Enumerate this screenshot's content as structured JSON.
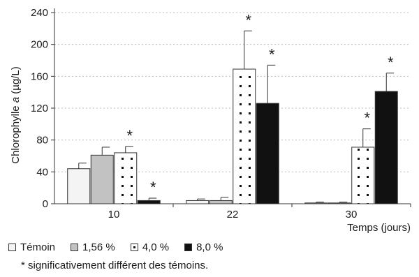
{
  "chart_data": {
    "type": "bar",
    "title": "",
    "ylabel_prefix": "Chlorophylle ",
    "ylabel_italic": "a",
    "ylabel_suffix": " (µg/L)",
    "xlabel": "Temps (jours)",
    "categories": [
      "10",
      "22",
      "30"
    ],
    "ylim": [
      0,
      240
    ],
    "yticks": [
      "0",
      "40",
      "80",
      "120",
      "160",
      "200",
      "240"
    ],
    "grid": true,
    "legend_position": "bottom-left",
    "series": [
      {
        "name": "Témoin",
        "pattern": "white",
        "values": [
          44,
          4,
          1
        ],
        "errors": [
          7,
          2,
          1
        ],
        "significant": [
          false,
          false,
          false
        ]
      },
      {
        "name": "1,56 %",
        "pattern": "gray",
        "values": [
          61,
          4,
          1
        ],
        "errors": [
          10,
          4,
          1
        ],
        "significant": [
          false,
          false,
          false
        ]
      },
      {
        "name": "4,0 %",
        "pattern": "dotted",
        "values": [
          64,
          169,
          71
        ],
        "errors": [
          8,
          48,
          23
        ],
        "significant": [
          true,
          true,
          true
        ]
      },
      {
        "name": "8,0 %",
        "pattern": "black",
        "values": [
          4,
          126,
          141
        ],
        "errors": [
          3,
          48,
          23
        ],
        "significant": [
          true,
          true,
          true
        ]
      }
    ],
    "star_symbol": "*"
  },
  "colors": {
    "white": "#f4f4f4",
    "gray": "#c2c2c2",
    "dotted_bg": "#ffffff",
    "black": "#111111",
    "stroke": "#333333",
    "grid": "#bdbdbd"
  },
  "footnote": "* significativement différent des témoins."
}
